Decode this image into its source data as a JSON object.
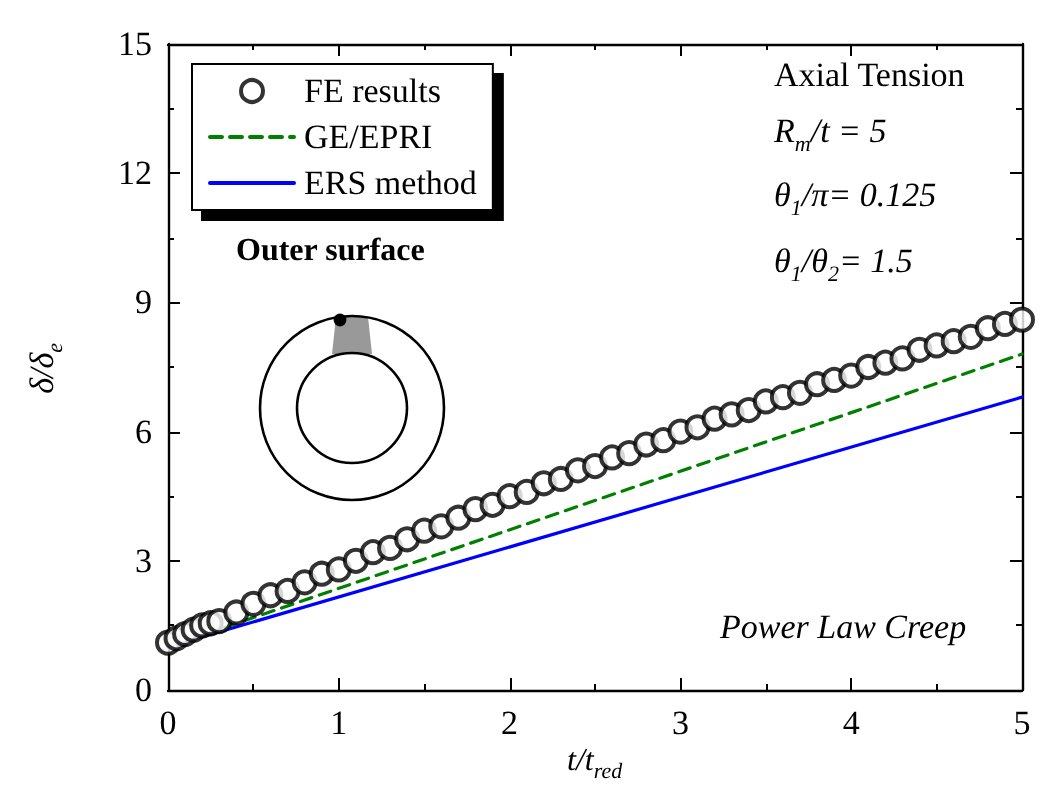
{
  "chart_data": {
    "type": "line",
    "xlabel": "t/t$_{red}$",
    "ylabel": "δ/δ$_{e}$",
    "xlim": [
      0,
      5
    ],
    "xticks": [
      0,
      1,
      2,
      3,
      4,
      5
    ],
    "ylim": [
      0,
      15
    ],
    "yticks": [
      0,
      3,
      6,
      9,
      12,
      15
    ],
    "grid": false,
    "legend": "top left",
    "annotations": [
      "Axial Tension",
      "R$_{m}$/t = 5",
      "θ$_{1}$/π= 0.125",
      "θ$_{1}$/θ$_{2}$= 1.5",
      "Outer surface",
      "Power Law Creep"
    ],
    "series": [
      {
        "name": "FE results",
        "type": "scatter",
        "marker": "circle",
        "color": "#000000",
        "x": [
          0,
          0.05,
          0.1,
          0.15,
          0.2,
          0.25,
          0.3,
          0.4,
          0.5,
          0.6,
          0.7,
          0.8,
          0.9,
          1.0,
          1.1,
          1.2,
          1.3,
          1.4,
          1.5,
          1.6,
          1.7,
          1.8,
          1.9,
          2.0,
          2.1,
          2.2,
          2.3,
          2.4,
          2.5,
          2.6,
          2.7,
          2.8,
          2.9,
          3.0,
          3.1,
          3.2,
          3.3,
          3.4,
          3.5,
          3.6,
          3.7,
          3.8,
          3.9,
          4.0,
          4.1,
          4.2,
          4.3,
          4.4,
          4.5,
          4.6,
          4.7,
          4.8,
          4.9,
          5.0
        ],
        "values": [
          1.1,
          1.2,
          1.3,
          1.4,
          1.5,
          1.55,
          1.6,
          1.8,
          2.0,
          2.2,
          2.3,
          2.5,
          2.7,
          2.8,
          3.0,
          3.2,
          3.3,
          3.5,
          3.7,
          3.8,
          4.0,
          4.2,
          4.3,
          4.5,
          4.6,
          4.8,
          4.9,
          5.1,
          5.2,
          5.4,
          5.5,
          5.7,
          5.8,
          6.0,
          6.1,
          6.3,
          6.4,
          6.5,
          6.7,
          6.8,
          6.9,
          7.1,
          7.2,
          7.3,
          7.5,
          7.6,
          7.7,
          7.9,
          8.0,
          8.1,
          8.2,
          8.4,
          8.5,
          8.6
        ]
      },
      {
        "name": "GE/EPRI",
        "line_style": "dashed",
        "color": "#008000",
        "x": [
          0,
          5
        ],
        "values": [
          1,
          7.8
        ]
      },
      {
        "name": "ERS method",
        "line_style": "solid",
        "color": "#0000ff",
        "x": [
          0,
          5
        ],
        "values": [
          1,
          6.8
        ]
      }
    ]
  }
}
